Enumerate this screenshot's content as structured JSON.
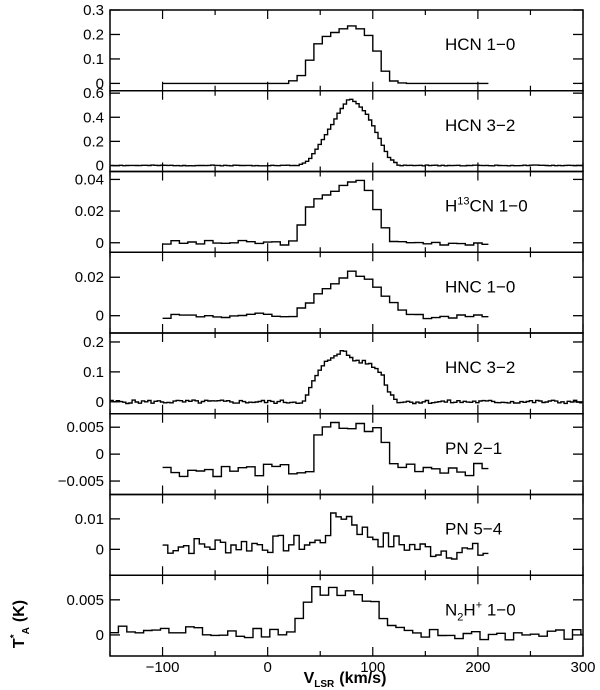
{
  "figure": {
    "xlabel": "V",
    "xlabel_sub": "LSR",
    "xlabel_unit": "(km/s)",
    "ylabel": "T",
    "ylabel_sup": "*",
    "ylabel_sub": "A",
    "ylabel_unit": "(K)"
  },
  "chart_data": {
    "type": "line",
    "style": "step",
    "shared_x_axis": true,
    "xlim": [
      -150,
      300
    ],
    "xticks": [
      -100,
      0,
      100,
      200,
      300
    ],
    "xtick_labels": [
      "−100",
      "0",
      "100",
      "200",
      "300"
    ],
    "xlabel": "V_LSR (km/s)",
    "ylabel": "T*_A (K)",
    "grid": false,
    "panels": [
      {
        "label": "HCN 1−0",
        "label_parts": [
          {
            "t": "HCN 1−0"
          }
        ],
        "ylim": [
          -0.03,
          0.3
        ],
        "yticks": [
          0,
          0.1,
          0.2,
          0.3
        ],
        "ytick_labels": [
          "0",
          "0.1",
          "0.2",
          "0.3"
        ],
        "xrange": [
          -100,
          210
        ],
        "step": 8,
        "profile": [
          [
            -100,
            0
          ],
          [
            20,
            0
          ],
          [
            35,
            0.04
          ],
          [
            45,
            0.15
          ],
          [
            55,
            0.19
          ],
          [
            70,
            0.22
          ],
          [
            80,
            0.235
          ],
          [
            90,
            0.22
          ],
          [
            100,
            0.18
          ],
          [
            110,
            0.06
          ],
          [
            120,
            0.01
          ],
          [
            130,
            0
          ]
        ],
        "noise": 0.0,
        "seed": 1
      },
      {
        "label": "HCN 3−2",
        "label_parts": [
          {
            "t": "HCN 3−2"
          }
        ],
        "ylim": [
          -0.05,
          0.62
        ],
        "yticks": [
          0,
          0.2,
          0.4,
          0.6
        ],
        "ytick_labels": [
          "0",
          "0.2",
          "0.4",
          "0.6"
        ],
        "xrange": [
          -150,
          300
        ],
        "step": 3,
        "profile": [
          [
            -150,
            0
          ],
          [
            30,
            0
          ],
          [
            40,
            0.05
          ],
          [
            50,
            0.18
          ],
          [
            60,
            0.32
          ],
          [
            70,
            0.47
          ],
          [
            78,
            0.56
          ],
          [
            85,
            0.52
          ],
          [
            95,
            0.42
          ],
          [
            105,
            0.25
          ],
          [
            115,
            0.07
          ],
          [
            125,
            0
          ],
          [
            300,
            0
          ]
        ],
        "noise": 0.003,
        "seed": 2
      },
      {
        "label": "H13CN 1−0",
        "label_parts": [
          {
            "t": "H"
          },
          {
            "t": "13",
            "sup": true
          },
          {
            "t": "CN 1−0"
          }
        ],
        "ylim": [
          -0.006,
          0.045
        ],
        "yticks": [
          0,
          0.02,
          0.04
        ],
        "ytick_labels": [
          "0",
          "0.02",
          "0.04"
        ],
        "xrange": [
          -100,
          210
        ],
        "step": 8,
        "profile": [
          [
            -100,
            0
          ],
          [
            25,
            0
          ],
          [
            35,
            0.015
          ],
          [
            45,
            0.028
          ],
          [
            60,
            0.032
          ],
          [
            75,
            0.036
          ],
          [
            85,
            0.04
          ],
          [
            95,
            0.035
          ],
          [
            105,
            0.02
          ],
          [
            115,
            0.004
          ],
          [
            125,
            0
          ],
          [
            210,
            0
          ]
        ],
        "noise": 0.0015,
        "seed": 3
      },
      {
        "label": "HNC 1−0",
        "label_parts": [
          {
            "t": "HNC 1−0"
          }
        ],
        "ylim": [
          -0.009,
          0.033
        ],
        "yticks": [
          0,
          0.02
        ],
        "ytick_labels": [
          "0",
          "0.02"
        ],
        "xrange": [
          -100,
          210
        ],
        "step": 8,
        "profile": [
          [
            -100,
            0
          ],
          [
            25,
            0
          ],
          [
            40,
            0.008
          ],
          [
            55,
            0.013
          ],
          [
            70,
            0.019
          ],
          [
            80,
            0.024
          ],
          [
            90,
            0.021
          ],
          [
            100,
            0.017
          ],
          [
            115,
            0.009
          ],
          [
            125,
            0.002
          ],
          [
            140,
            0
          ],
          [
            210,
            0
          ]
        ],
        "noise": 0.0015,
        "seed": 4
      },
      {
        "label": "HNC 3−2",
        "label_parts": [
          {
            "t": "HNC 3−2"
          }
        ],
        "ylim": [
          -0.04,
          0.23
        ],
        "yticks": [
          0,
          0.1,
          0.2
        ],
        "ytick_labels": [
          "0",
          "0.1",
          "0.2"
        ],
        "xrange": [
          -150,
          300
        ],
        "step": 3,
        "profile": [
          [
            -150,
            0
          ],
          [
            35,
            0
          ],
          [
            45,
            0.08
          ],
          [
            55,
            0.13
          ],
          [
            65,
            0.16
          ],
          [
            72,
            0.17
          ],
          [
            82,
            0.14
          ],
          [
            95,
            0.13
          ],
          [
            108,
            0.1
          ],
          [
            116,
            0.03
          ],
          [
            125,
            0
          ],
          [
            300,
            0
          ]
        ],
        "noise": 0.006,
        "seed": 5
      },
      {
        "label": "PN 2−1",
        "label_parts": [
          {
            "t": "PN 2−1"
          }
        ],
        "ylim": [
          -0.0075,
          0.0075
        ],
        "yticks": [
          -0.005,
          0,
          0.005
        ],
        "ytick_labels": [
          "−0.005",
          "0",
          "0.005"
        ],
        "xrange": [
          -100,
          210
        ],
        "step": 8,
        "profile": [
          [
            -100,
            -0.003
          ],
          [
            40,
            -0.003
          ],
          [
            50,
            0.004
          ],
          [
            60,
            0.005
          ],
          [
            100,
            0.005
          ],
          [
            110,
            0.003
          ],
          [
            120,
            -0.002
          ],
          [
            210,
            -0.003
          ]
        ],
        "noise": 0.0012,
        "seed": 6
      },
      {
        "label": "PN 5−4",
        "label_parts": [
          {
            "t": "PN 5−4"
          }
        ],
        "ylim": [
          -0.0085,
          0.018
        ],
        "yticks": [
          0,
          0.01
        ],
        "ytick_labels": [
          "0",
          "0.01"
        ],
        "xrange": [
          -100,
          210
        ],
        "step": 5,
        "profile": [
          [
            -100,
            0.001
          ],
          [
            50,
            0.002
          ],
          [
            60,
            0.008
          ],
          [
            70,
            0.012
          ],
          [
            80,
            0.01
          ],
          [
            90,
            0.006
          ],
          [
            110,
            0.003
          ],
          [
            150,
            0
          ],
          [
            210,
            -0.001
          ]
        ],
        "noise": 0.003,
        "seed": 7
      },
      {
        "label": "N2H+ 1−0",
        "label_parts": [
          {
            "t": "N"
          },
          {
            "t": "2",
            "sub": true
          },
          {
            "t": "H"
          },
          {
            "t": "+",
            "sup": true
          },
          {
            "t": " 1−0"
          }
        ],
        "ylim": [
          -0.003,
          0.0085
        ],
        "yticks": [
          0,
          0.005
        ],
        "ytick_labels": [
          "0",
          "0.005"
        ],
        "xrange": [
          -150,
          300
        ],
        "step": 8,
        "profile": [
          [
            -150,
            0.0005
          ],
          [
            25,
            0.0005
          ],
          [
            35,
            0.004
          ],
          [
            45,
            0.0065
          ],
          [
            75,
            0.006
          ],
          [
            100,
            0.0045
          ],
          [
            115,
            0.001
          ],
          [
            130,
            0
          ],
          [
            300,
            0
          ]
        ],
        "noise": 0.0009,
        "seed": 8
      }
    ]
  }
}
